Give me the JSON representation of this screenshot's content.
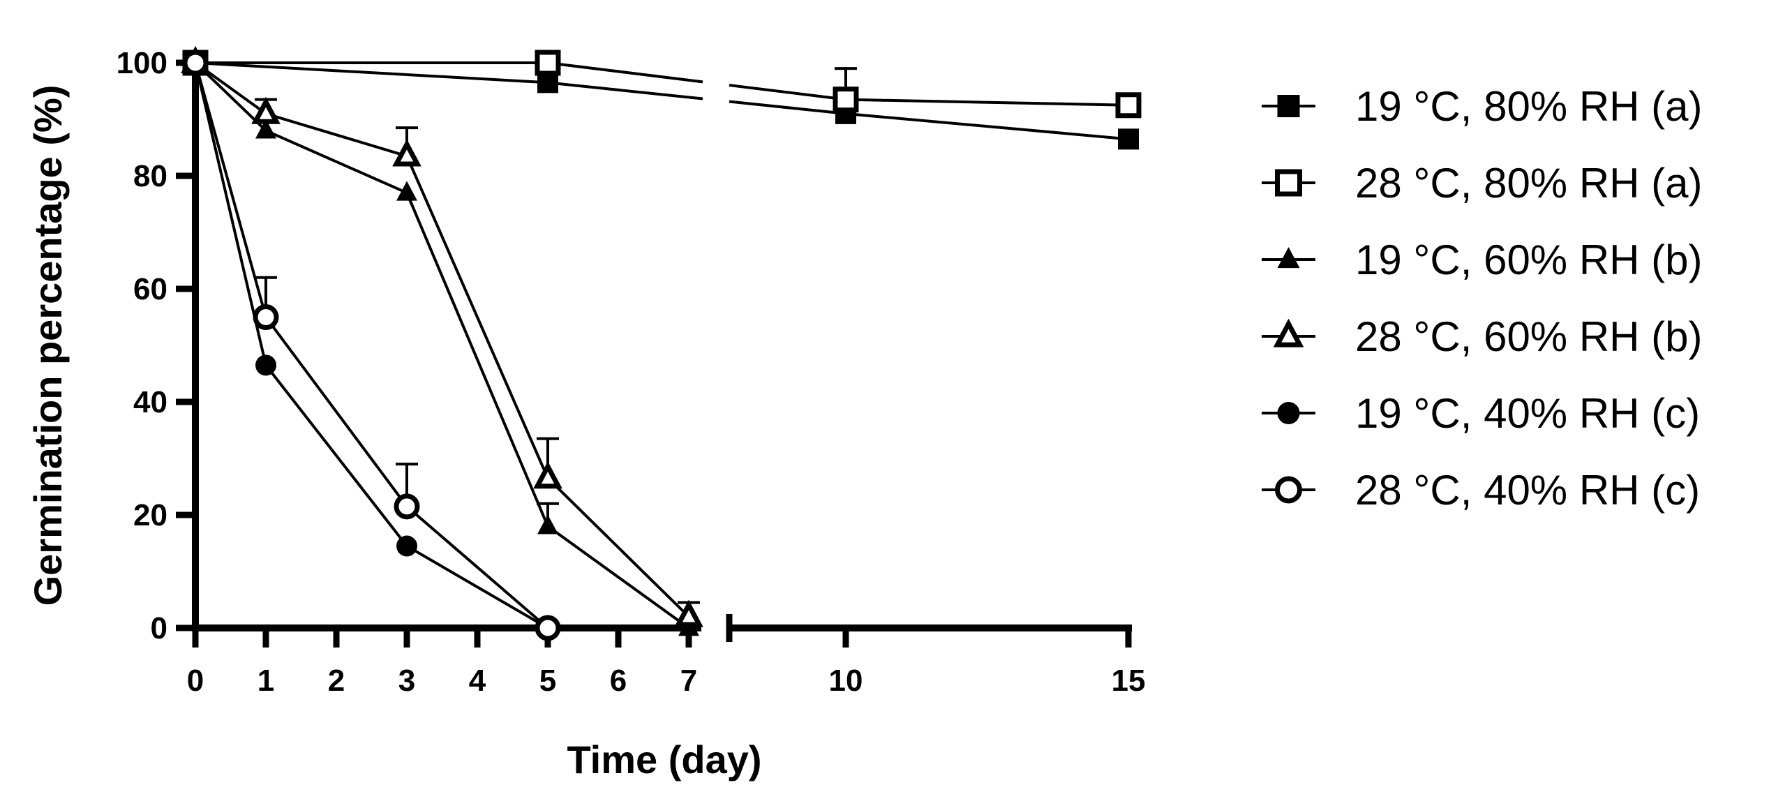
{
  "chart_data": {
    "type": "line",
    "xlabel": "Time (day)",
    "ylabel": "Germination percentage (%)",
    "xlim": [
      0,
      15
    ],
    "ylim": [
      0,
      100
    ],
    "x_axis_break": [
      7,
      10
    ],
    "xticks": [
      0,
      1,
      2,
      3,
      4,
      5,
      6,
      7,
      10,
      15
    ],
    "xtick_labels": [
      "0",
      "1",
      "2",
      "3",
      "4",
      "5",
      "6",
      "7",
      "10",
      "15"
    ],
    "yticks": [
      0,
      20,
      40,
      60,
      80,
      100
    ],
    "ytick_labels": [
      "0",
      "20",
      "40",
      "60",
      "80",
      "100"
    ],
    "grid": false,
    "legend_position": "right",
    "series": [
      {
        "name": "19 °C, 80% RH (a)",
        "marker": "square",
        "filled": true,
        "points": [
          {
            "x": 0,
            "y": 100
          },
          {
            "x": 5,
            "y": 96.5
          },
          {
            "x": 10,
            "y": 91
          },
          {
            "x": 15,
            "y": 86.5
          }
        ],
        "errors": [
          0,
          0,
          0,
          0
        ]
      },
      {
        "name": "28 °C, 80% RH (a)",
        "marker": "square",
        "filled": false,
        "points": [
          {
            "x": 0,
            "y": 100
          },
          {
            "x": 5,
            "y": 100
          },
          {
            "x": 10,
            "y": 93.5
          },
          {
            "x": 15,
            "y": 92.5
          }
        ],
        "errors": [
          0,
          0,
          5.5,
          0
        ]
      },
      {
        "name": "19 °C, 60% RH (b)",
        "marker": "triangle",
        "filled": true,
        "points": [
          {
            "x": 0,
            "y": 100
          },
          {
            "x": 1,
            "y": 88
          },
          {
            "x": 3,
            "y": 77
          },
          {
            "x": 5,
            "y": 18
          },
          {
            "x": 7,
            "y": 0
          }
        ],
        "errors": [
          0,
          0,
          0,
          4,
          0
        ]
      },
      {
        "name": "28 °C, 60% RH (b)",
        "marker": "triangle",
        "filled": false,
        "points": [
          {
            "x": 0,
            "y": 100
          },
          {
            "x": 1,
            "y": 91
          },
          {
            "x": 3,
            "y": 83.5
          },
          {
            "x": 5,
            "y": 26.5
          },
          {
            "x": 7,
            "y": 2
          }
        ],
        "errors": [
          0,
          2.5,
          5,
          7,
          2.5
        ]
      },
      {
        "name": "19 °C, 40% RH (c)",
        "marker": "circle",
        "filled": true,
        "points": [
          {
            "x": 0,
            "y": 100
          },
          {
            "x": 1,
            "y": 46.5
          },
          {
            "x": 3,
            "y": 14.5
          },
          {
            "x": 5,
            "y": 0
          }
        ],
        "errors": [
          0,
          0,
          0,
          0
        ]
      },
      {
        "name": "28 °C, 40% RH (c)",
        "marker": "circle",
        "filled": false,
        "points": [
          {
            "x": 0,
            "y": 100
          },
          {
            "x": 1,
            "y": 55
          },
          {
            "x": 3,
            "y": 21.5
          },
          {
            "x": 5,
            "y": 0
          }
        ],
        "errors": [
          0,
          7,
          7.5,
          0
        ]
      }
    ]
  }
}
